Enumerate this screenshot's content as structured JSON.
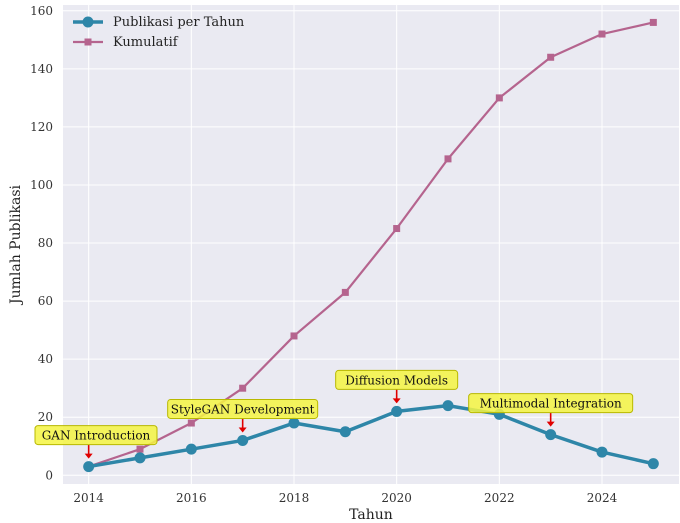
{
  "chart_data": {
    "type": "line",
    "xlabel": "Tahun",
    "ylabel": "Jumlah Publikasi",
    "x": [
      2014,
      2015,
      2016,
      2017,
      2018,
      2019,
      2020,
      2021,
      2022,
      2023,
      2024,
      2025
    ],
    "series": [
      {
        "name": "Publikasi per Tahun",
        "color": "#2e86a8",
        "marker": "circle",
        "values": [
          3,
          6,
          9,
          12,
          18,
          15,
          22,
          24,
          21,
          14,
          8,
          4
        ]
      },
      {
        "name": "Kumulatif",
        "color": "#b5648e",
        "marker": "square",
        "values": [
          3,
          9,
          18,
          30,
          48,
          63,
          85,
          109,
          130,
          144,
          152,
          156
        ]
      }
    ],
    "xlim": [
      2013.5,
      2025.5
    ],
    "ylim": [
      -3,
      162
    ],
    "xticks": [
      2014,
      2016,
      2018,
      2020,
      2022,
      2024
    ],
    "yticks": [
      0,
      20,
      40,
      60,
      80,
      100,
      120,
      140,
      160
    ],
    "grid": true,
    "background": "#eaeaf2",
    "legend_position": "top-left",
    "annotations": [
      {
        "text": "GAN Introduction",
        "x": 2014,
        "y": 3
      },
      {
        "text": "StyleGAN Development",
        "x": 2017,
        "y": 12
      },
      {
        "text": "Diffusion Models",
        "x": 2020,
        "y": 22
      },
      {
        "text": "Multimodal Integration",
        "x": 2023,
        "y": 14
      }
    ],
    "annotation_style": {
      "box": "#f5f542",
      "border": "#b8b800",
      "arrow": "#e00000"
    }
  }
}
